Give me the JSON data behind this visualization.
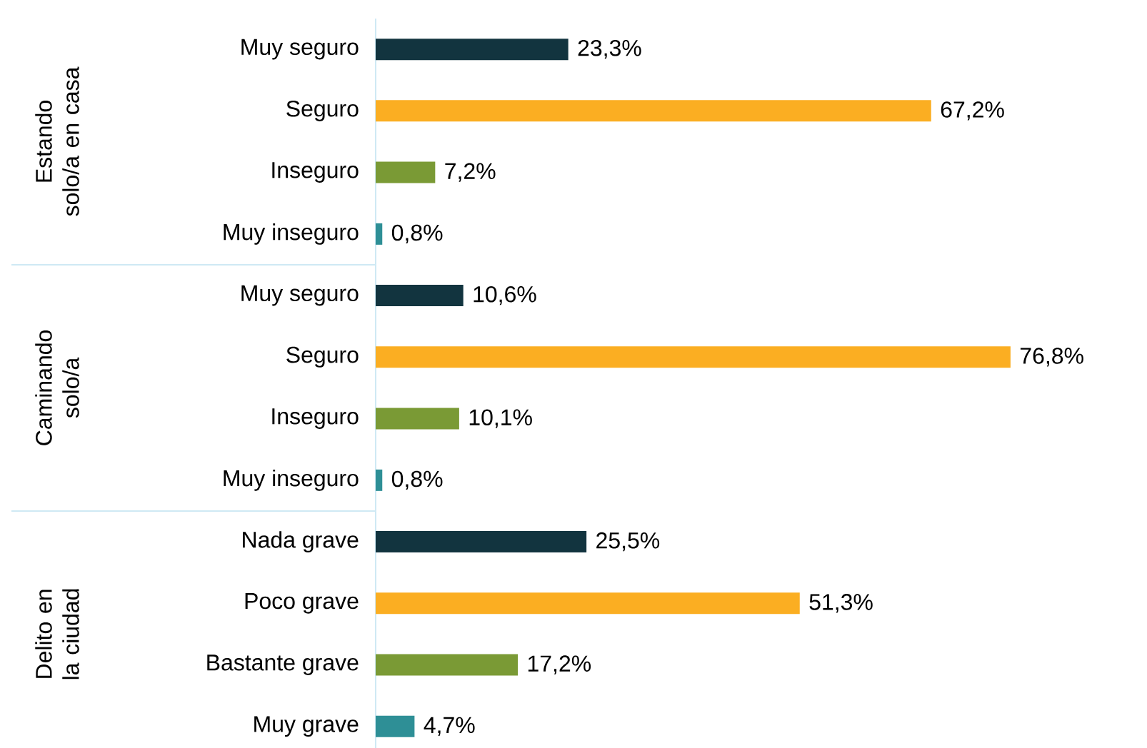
{
  "chart_data": {
    "type": "bar",
    "orientation": "horizontal",
    "categories": [
      "Muy seguro",
      "Seguro",
      "Inseguro",
      "Muy inseguro",
      "Muy seguro",
      "Seguro",
      "Inseguro",
      "Muy inseguro",
      "Nada grave",
      "Poco grave",
      "Bastante grave",
      "Muy grave"
    ],
    "values": [
      23.3,
      67.2,
      7.2,
      0.8,
      10.6,
      76.8,
      10.1,
      0.8,
      25.5,
      51.3,
      17.2,
      4.7
    ],
    "value_labels": [
      "23,3%",
      "67,2%",
      "7,2%",
      "0,8%",
      "10,6%",
      "76,8%",
      "10,1%",
      "0,8%",
      "25,5%",
      "51,3%",
      "17,2%",
      "4,7%"
    ],
    "colors": [
      "#12343f",
      "#fbae22",
      "#7a9a35",
      "#2e8f96",
      "#12343f",
      "#fbae22",
      "#7a9a35",
      "#2e8f96",
      "#12343f",
      "#fbae22",
      "#7a9a35",
      "#2e8f96"
    ],
    "annotations": [
      "Estando solo/a en casa",
      "Caminando solo/a",
      "Delito en la ciudad"
    ]
  }
}
